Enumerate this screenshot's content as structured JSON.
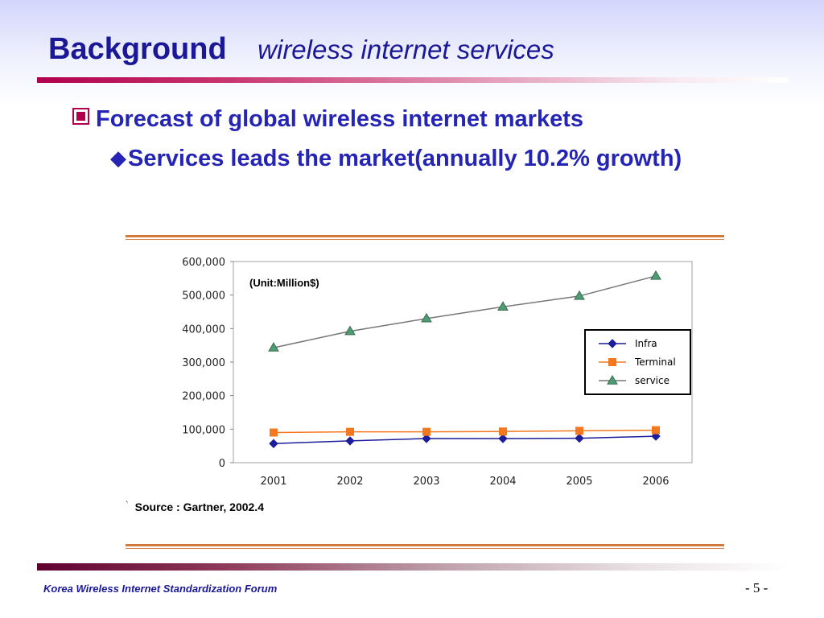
{
  "slide": {
    "title": "Background",
    "subtitle": "wireless internet services",
    "bullet1": "Forecast of global wireless internet markets",
    "bullet2": "Services leads the market(annually 10.2% growth)",
    "source_mark": "`",
    "source": "Source : Gartner, 2002.4",
    "footer_org": "Korea Wireless Internet Standardization Forum",
    "page_number": "- 5 -"
  },
  "colors": {
    "title": "#1a1896",
    "bullet_text": "#2525b5",
    "bullet_icon": "#b0004e",
    "rule_orange": "#d27a3c"
  },
  "icons": {
    "bullet1": "square-bullet-icon",
    "bullet2": "diamond-bullet-icon"
  },
  "chart_data": {
    "type": "line",
    "annotation": "(Unit:Million$)",
    "categories": [
      "2001",
      "2002",
      "2003",
      "2004",
      "2005",
      "2006"
    ],
    "yticks": [
      "0",
      "100,000",
      "200,000",
      "300,000",
      "400,000",
      "500,000",
      "600,000"
    ],
    "ylim": [
      0,
      600000
    ],
    "grid": false,
    "legend_position": "right",
    "series": [
      {
        "name": "Infra",
        "values": [
          57000,
          65000,
          72000,
          72000,
          73000,
          79000
        ],
        "color": "#1b1d9a",
        "marker": "diamond"
      },
      {
        "name": "Terminal",
        "values": [
          90000,
          92000,
          92000,
          93000,
          95000,
          97000
        ],
        "color": "#f47820",
        "marker": "square"
      },
      {
        "name": "service",
        "values": [
          343000,
          392000,
          430000,
          465000,
          497000,
          557000
        ],
        "color": "#4d9d74",
        "marker": "triangle"
      }
    ]
  }
}
